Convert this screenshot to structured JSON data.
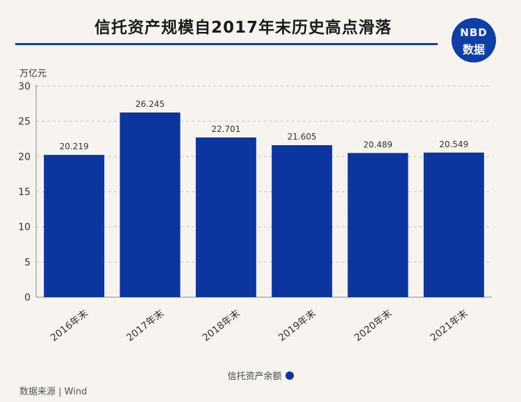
{
  "header": {
    "title": "信托资产规模自2017年末历史高点滑落",
    "logo_top": "NBD",
    "logo_bottom": "数据"
  },
  "chart_data": {
    "type": "bar",
    "ylabel": "万亿元",
    "categories": [
      "2016年末",
      "2017年末",
      "2018年末",
      "2019年末",
      "2020年末",
      "2021年末"
    ],
    "series": [
      {
        "name": "信托资产余额",
        "values": [
          20.219,
          26.245,
          22.701,
          21.605,
          20.489,
          20.549
        ]
      }
    ],
    "value_labels": [
      "20.219",
      "26.245",
      "22.701",
      "21.605",
      "20.489",
      "20.549"
    ],
    "ylim": [
      0,
      30
    ],
    "yticks": [
      "0",
      "5",
      "10",
      "15",
      "20",
      "25",
      "30"
    ],
    "grid": true,
    "legend_position": "bottom-center",
    "bar_color": "#0d35a0"
  },
  "footer": {
    "source": "数据来源 | Wind"
  }
}
